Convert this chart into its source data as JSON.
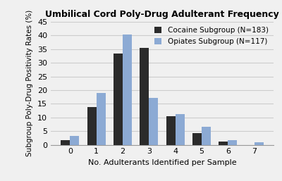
{
  "title": "Umbilical Cord Poly-Drug Adulterant Frequency",
  "xlabel": "No. Adulterants Identified per Sample",
  "ylabel": "Subgroup Poly-Drug Positivity Rates (%)",
  "categories": [
    0,
    1,
    2,
    3,
    4,
    5,
    6,
    7
  ],
  "cocaine": [
    1.6,
    13.7,
    33.3,
    35.5,
    10.4,
    4.4,
    1.1,
    0
  ],
  "opiates": [
    3.3,
    19.0,
    40.2,
    17.1,
    11.1,
    6.7,
    1.8,
    0.9
  ],
  "cocaine_label": "Cocaine Subgroup (N=183)",
  "opiates_label": "Opiates Subgroup (N=117)",
  "cocaine_color": "#2b2b2b",
  "opiates_color": "#8caad4",
  "ylim": [
    0,
    45
  ],
  "yticks": [
    0,
    5,
    10,
    15,
    20,
    25,
    30,
    35,
    40,
    45
  ],
  "bar_width": 0.35,
  "background_color": "#f0f0f0",
  "plot_bg_color": "#f0f0f0",
  "grid_color": "#cccccc",
  "title_fontsize": 9,
  "axis_label_fontsize": 8,
  "tick_fontsize": 8,
  "legend_fontsize": 7.5
}
